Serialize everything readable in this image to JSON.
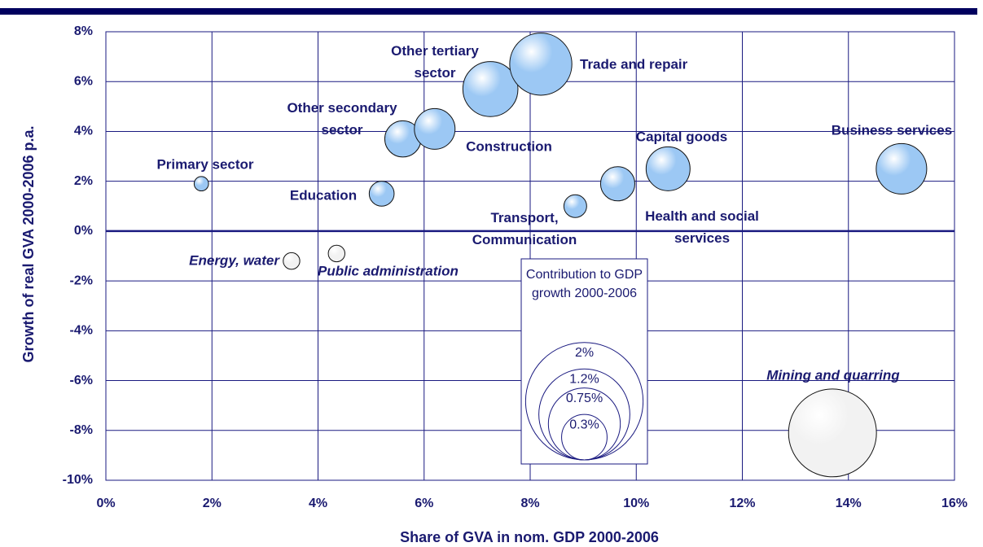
{
  "chart_data": {
    "type": "bubble",
    "xlabel": "Share of GVA in nom. GDP 2000-2006",
    "ylabel": "Growth of real GVA 2000-2006 p.a.",
    "xlim": [
      0,
      16
    ],
    "ylim": [
      -10,
      8
    ],
    "xticks": [
      {
        "value": 0,
        "label": "0%"
      },
      {
        "value": 2,
        "label": "2%"
      },
      {
        "value": 4,
        "label": "4%"
      },
      {
        "value": 6,
        "label": "6%"
      },
      {
        "value": 8,
        "label": "8%"
      },
      {
        "value": 10,
        "label": "10%"
      },
      {
        "value": 12,
        "label": "12%"
      },
      {
        "value": 14,
        "label": "14%"
      },
      {
        "value": 16,
        "label": "16%"
      }
    ],
    "yticks": [
      {
        "value": -10,
        "label": "-10%"
      },
      {
        "value": -8,
        "label": "-8%"
      },
      {
        "value": -6,
        "label": "-6%"
      },
      {
        "value": -4,
        "label": "-4%"
      },
      {
        "value": -2,
        "label": "-2%"
      },
      {
        "value": 0,
        "label": "0%"
      },
      {
        "value": 2,
        "label": "2%"
      },
      {
        "value": 4,
        "label": "4%"
      },
      {
        "value": 6,
        "label": "6%"
      },
      {
        "value": 8,
        "label": "8%"
      }
    ],
    "grid": true,
    "categories": [
      "Primary sector",
      "Energy, water",
      "Public administration",
      "Education",
      "Other secondary sector",
      "Construction",
      "Other tertiary sector",
      "Trade and repair",
      "Transport, Communication",
      "Health and social services",
      "Capital goods",
      "Business services",
      "Mining and quarring"
    ],
    "x": [
      1.8,
      3.5,
      4.35,
      5.2,
      5.6,
      6.2,
      7.25,
      8.2,
      8.85,
      9.65,
      10.6,
      15.0,
      13.7
    ],
    "values": [
      1.9,
      -1.2,
      -0.9,
      1.5,
      3.7,
      4.1,
      5.7,
      6.7,
      1.0,
      1.9,
      2.5,
      2.5,
      -8.1
    ],
    "sizes": [
      0.03,
      0.04,
      0.04,
      0.09,
      0.19,
      0.24,
      0.44,
      0.56,
      0.075,
      0.17,
      0.28,
      0.37,
      1.12
    ],
    "colors": [
      "#9cc8f4",
      "#f2f2f2",
      "#f2f2f2",
      "#9cc8f4",
      "#9cc8f4",
      "#9cc8f4",
      "#9cc8f4",
      "#9cc8f4",
      "#9cc8f4",
      "#9cc8f4",
      "#9cc8f4",
      "#9cc8f4",
      "#f2f2f2"
    ],
    "size_legend": {
      "title": "Contribution to GDP growth 2000-2006",
      "sizes": [
        {
          "value": 2,
          "label": "2%"
        },
        {
          "value": 1.2,
          "label": "1.2%"
        },
        {
          "value": 0.75,
          "label": "0.75%"
        },
        {
          "value": 0.3,
          "label": "0.3%"
        }
      ]
    }
  }
}
